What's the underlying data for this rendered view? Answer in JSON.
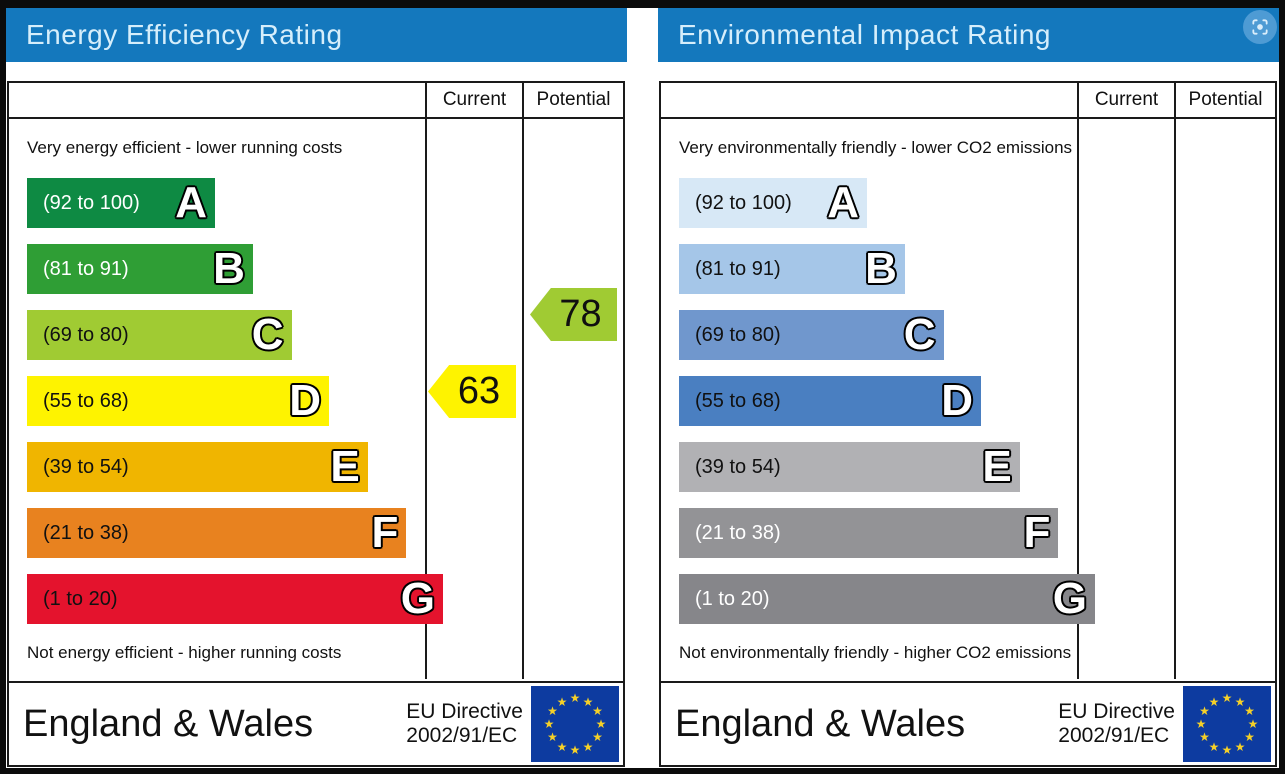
{
  "theme": {
    "header_blue": "#1478bd",
    "header_text": "#d6eefb",
    "panel_bg": "#ffffff",
    "frame_black": "#0b0b0b",
    "border_black": "#1a1a1a",
    "flag_blue": "#0d3ba0",
    "star_yellow": "#f5d028",
    "lens_bg": "#4e9bd4",
    "lens_glyph": "#dceefb"
  },
  "icons": {
    "lens": "lens-icon",
    "eu_flag": "eu-flag-icon"
  },
  "panels": [
    {
      "title": "Energy Efficiency Rating",
      "col_current": "Current",
      "col_potential": "Potential",
      "top_note": "Very energy efficient - lower running costs",
      "bottom_note": "Not energy efficient - higher running costs",
      "bands": [
        {
          "letter": "A",
          "range": "(92 to 100)",
          "color": "#0e8a43",
          "text_color": "#ffffff",
          "width_pct": 45.2
        },
        {
          "letter": "B",
          "range": "(81 to 91)",
          "color": "#2f9e35",
          "text_color": "#ffffff",
          "width_pct": 54.3
        },
        {
          "letter": "C",
          "range": "(69 to 80)",
          "color": "#a0cb33",
          "text_color": "#111111",
          "width_pct": 63.6
        },
        {
          "letter": "D",
          "range": "(55 to 68)",
          "color": "#fef300",
          "text_color": "#111111",
          "width_pct": 72.6
        },
        {
          "letter": "E",
          "range": "(39 to 54)",
          "color": "#f0b500",
          "text_color": "#111111",
          "width_pct": 81.9
        },
        {
          "letter": "F",
          "range": "(21 to 38)",
          "color": "#e8821f",
          "text_color": "#111111",
          "width_pct": 91.2
        },
        {
          "letter": "G",
          "range": "(1 to 20)",
          "color": "#e4132d",
          "text_color": "#111111",
          "width_pct": 100
        }
      ],
      "current": {
        "value": "63",
        "band": "D",
        "color": "#fef300"
      },
      "potential": {
        "value": "78",
        "band": "C",
        "color": "#a0cb33"
      },
      "footer": {
        "region": "England & Wales",
        "directive_line1": "EU Directive",
        "directive_line2": "2002/91/EC"
      }
    },
    {
      "title": "Environmental Impact Rating",
      "col_current": "Current",
      "col_potential": "Potential",
      "top_note": "Very environmentally friendly - lower CO2 emissions",
      "bottom_note": "Not environmentally friendly - higher CO2 emissions",
      "bands": [
        {
          "letter": "A",
          "range": "(92 to 100)",
          "color": "#d7e8f6",
          "text_color": "#111111",
          "width_pct": 45.2
        },
        {
          "letter": "B",
          "range": "(81 to 91)",
          "color": "#a5c6e8",
          "text_color": "#111111",
          "width_pct": 54.3
        },
        {
          "letter": "C",
          "range": "(69 to 80)",
          "color": "#7097cd",
          "text_color": "#111111",
          "width_pct": 63.6
        },
        {
          "letter": "D",
          "range": "(55 to 68)",
          "color": "#4a7fc1",
          "text_color": "#111111",
          "width_pct": 72.6
        },
        {
          "letter": "E",
          "range": "(39 to 54)",
          "color": "#b1b1b4",
          "text_color": "#111111",
          "width_pct": 81.9
        },
        {
          "letter": "F",
          "range": "(21 to 38)",
          "color": "#939396",
          "text_color": "#ffffff",
          "width_pct": 91.2
        },
        {
          "letter": "G",
          "range": "(1 to 20)",
          "color": "#86868a",
          "text_color": "#ffffff",
          "width_pct": 100
        }
      ],
      "current": null,
      "potential": null,
      "footer": {
        "region": "England & Wales",
        "directive_line1": "EU Directive",
        "directive_line2": "2002/91/EC"
      }
    }
  ],
  "chart_data": [
    {
      "type": "bar",
      "title": "Energy Efficiency Rating",
      "categories": [
        "A",
        "B",
        "C",
        "D",
        "E",
        "F",
        "G"
      ],
      "band_ranges": [
        "92 to 100",
        "81 to 91",
        "69 to 80",
        "55 to 68",
        "39 to 54",
        "21 to 38",
        "1 to 20"
      ],
      "bar_lengths_pct": [
        45.2,
        54.3,
        63.6,
        72.6,
        81.9,
        91.2,
        100
      ],
      "current": 63,
      "current_band": "D",
      "potential": 78,
      "potential_band": "C",
      "top_label": "Very energy efficient - lower running costs",
      "bottom_label": "Not energy efficient - higher running costs",
      "region": "England & Wales",
      "directive": "EU Directive 2002/91/EC",
      "legend_position": "none",
      "grid": false
    },
    {
      "type": "bar",
      "title": "Environmental Impact Rating",
      "categories": [
        "A",
        "B",
        "C",
        "D",
        "E",
        "F",
        "G"
      ],
      "band_ranges": [
        "92 to 100",
        "81 to 91",
        "69 to 80",
        "55 to 68",
        "39 to 54",
        "21 to 38",
        "1 to 20"
      ],
      "bar_lengths_pct": [
        45.2,
        54.3,
        63.6,
        72.6,
        81.9,
        91.2,
        100
      ],
      "current": null,
      "potential": null,
      "top_label": "Very environmentally friendly - lower CO2 emissions",
      "bottom_label": "Not environmentally friendly - higher CO2 emissions",
      "region": "England & Wales",
      "directive": "EU Directive 2002/91/EC",
      "legend_position": "none",
      "grid": false
    }
  ]
}
